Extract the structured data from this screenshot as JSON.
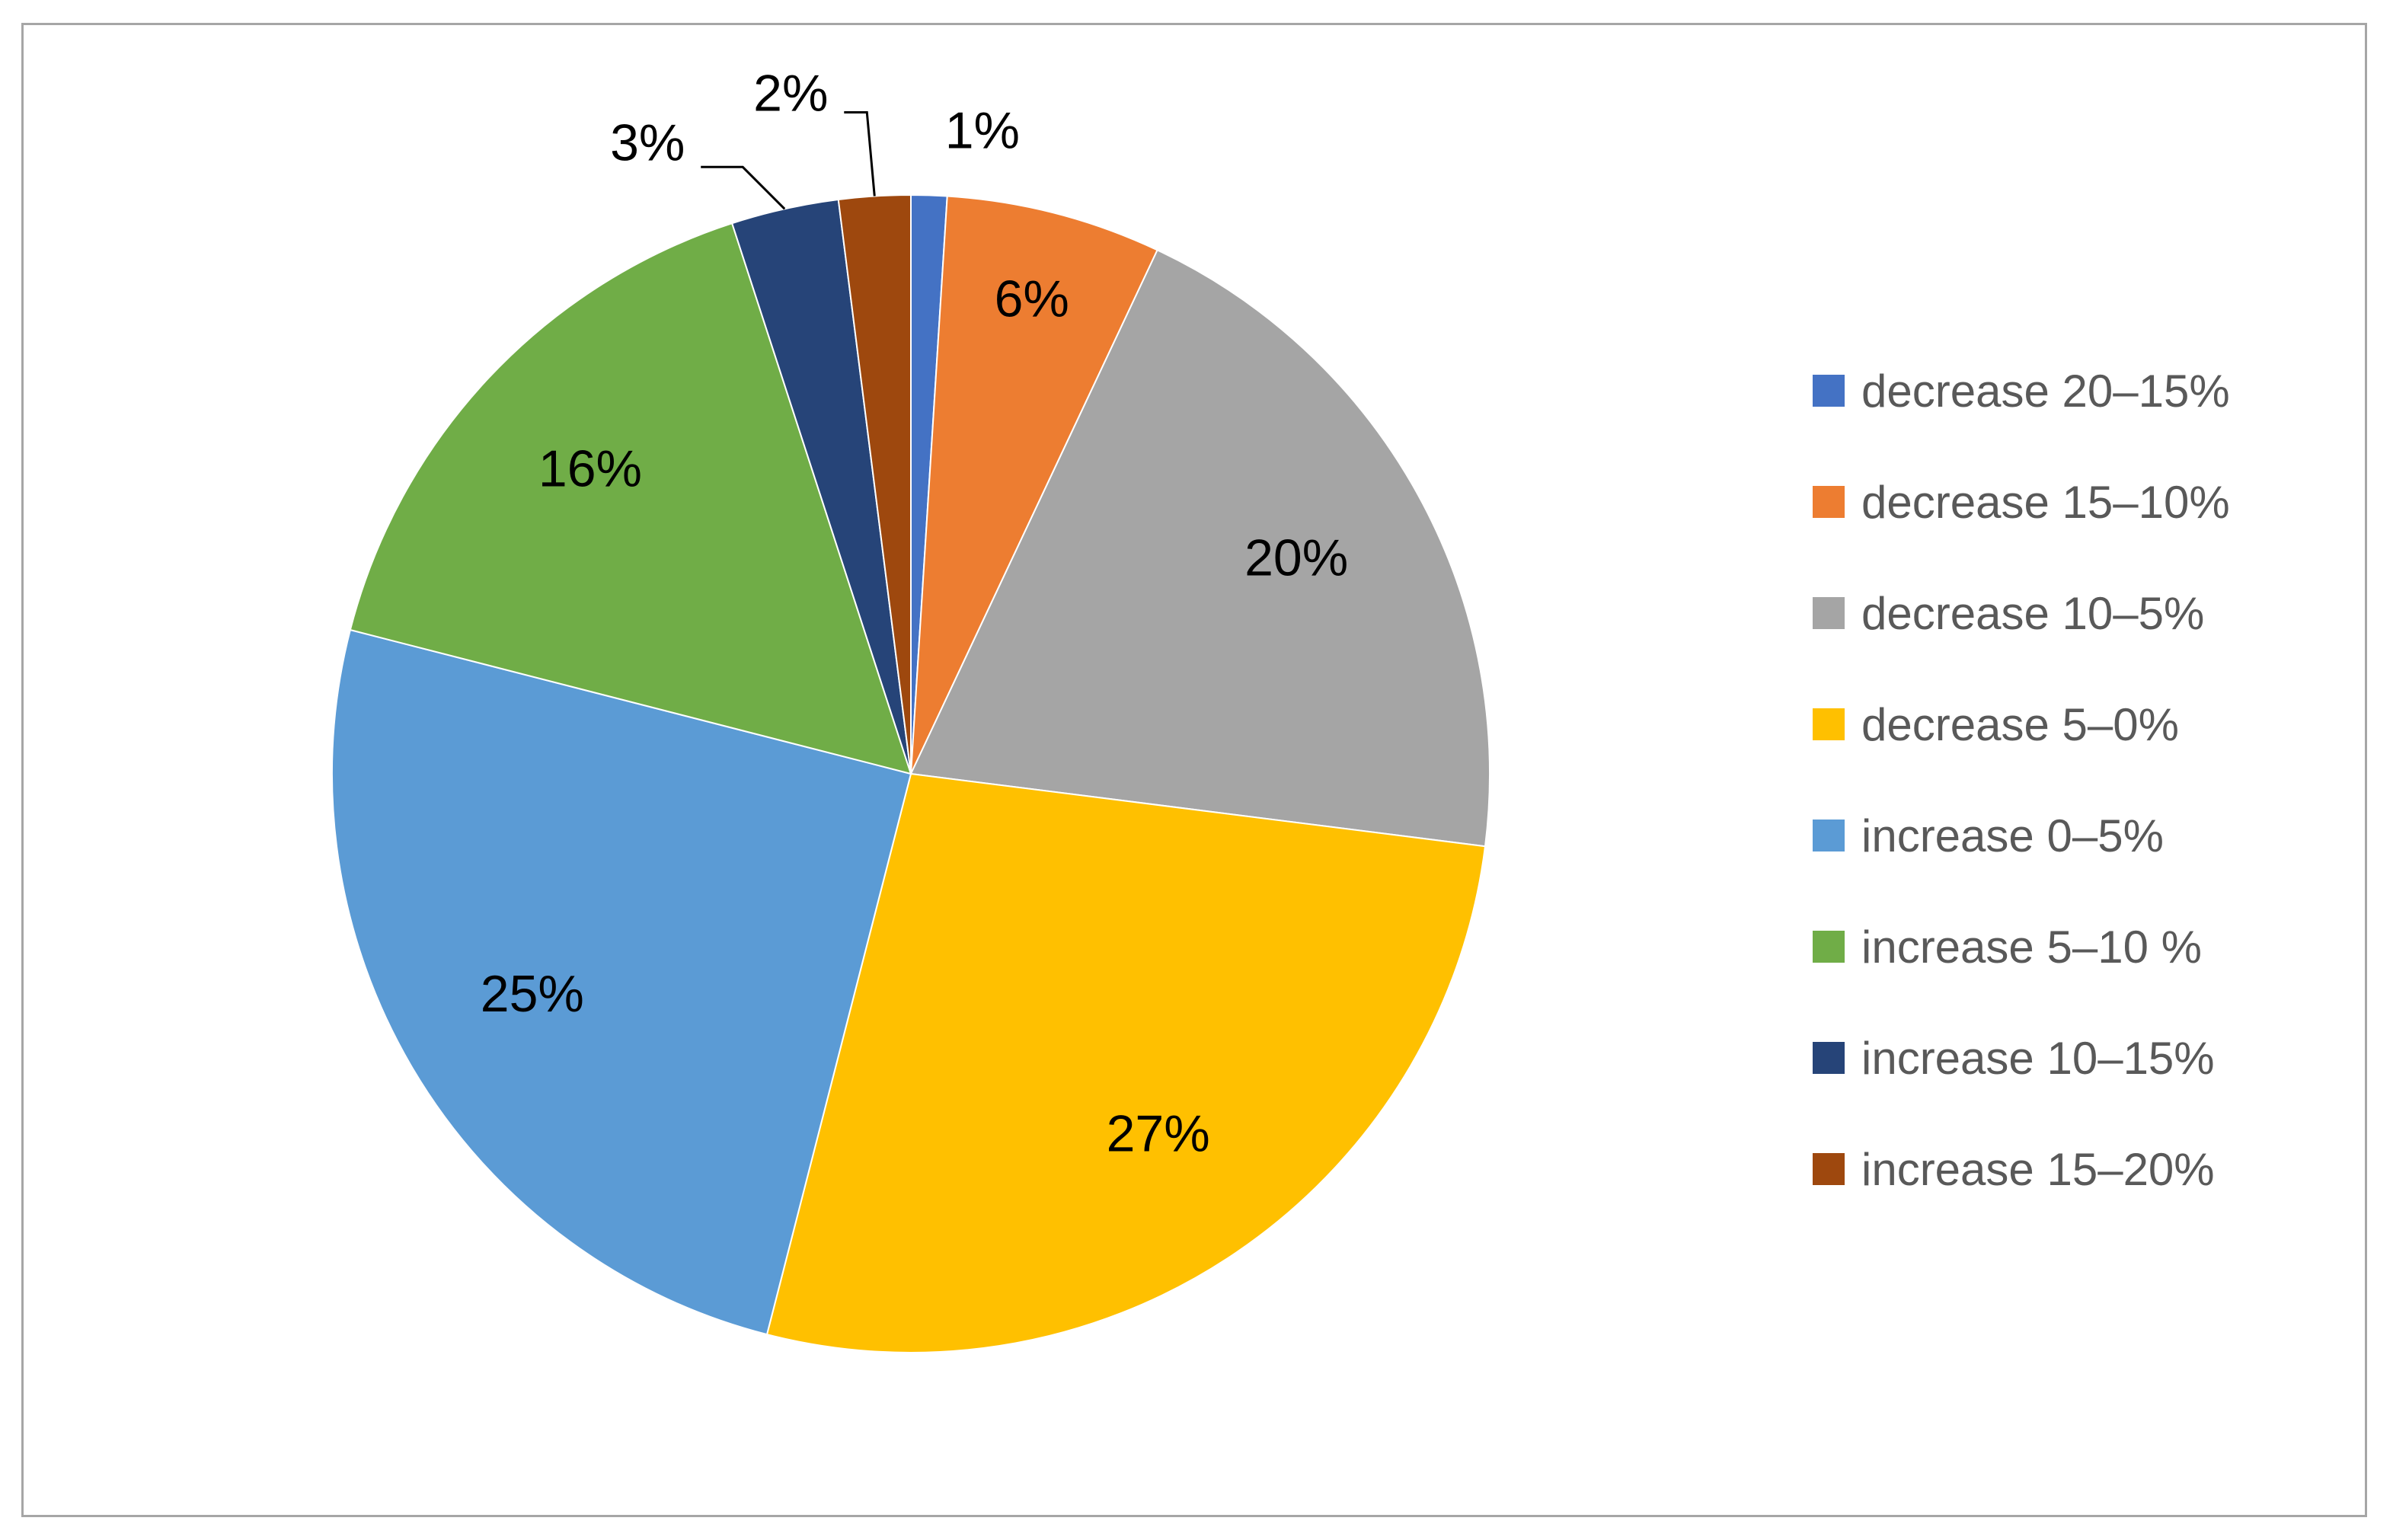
{
  "chart_data": {
    "type": "pie",
    "categories": [
      "decrease 20–15%",
      "decrease 15–10%",
      "decrease 10–5%",
      "decrease 5–0%",
      "increase 0–5%",
      "increase 5–10 %",
      "increase 10–15%",
      "increase 15–20%"
    ],
    "values": [
      1,
      6,
      20,
      27,
      25,
      16,
      3,
      2
    ],
    "value_labels": [
      "1%",
      "6%",
      "20%",
      "27%",
      "25%",
      "16%",
      "3%",
      "2%"
    ],
    "colors": [
      "#4472C4",
      "#ED7D31",
      "#A5A5A5",
      "#FFC000",
      "#5B9BD5",
      "#70AD47",
      "#264478",
      "#9E480E"
    ],
    "start_angle": "12 o'clock",
    "direction": "clockwise",
    "legend_position": "right"
  }
}
